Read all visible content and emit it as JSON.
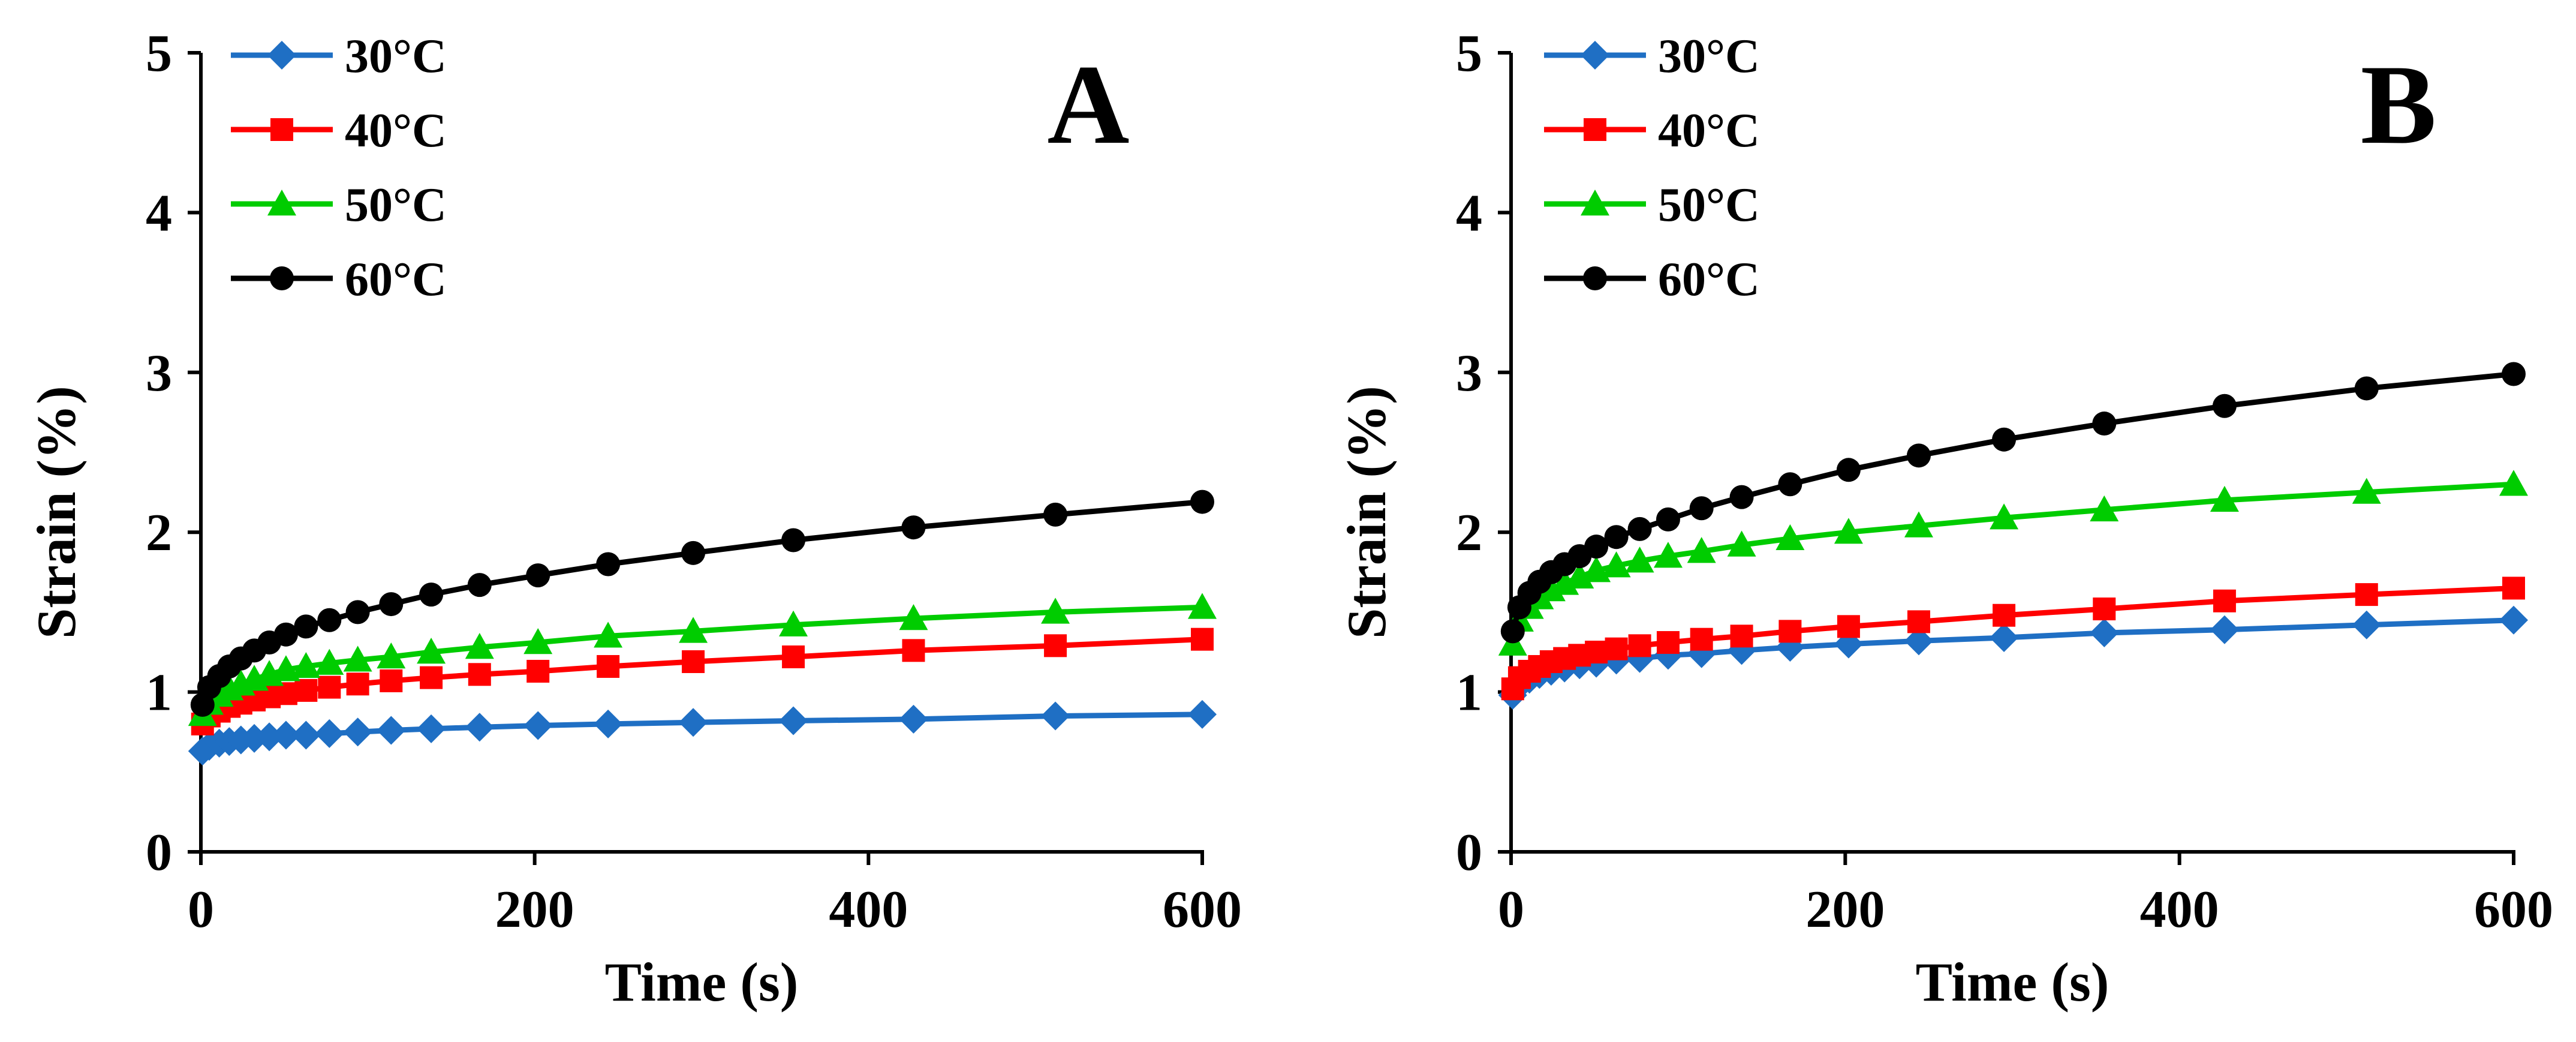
{
  "chart_data": [
    {
      "type": "line",
      "panel_label": "A",
      "xlabel": "Time (s)",
      "ylabel": "Strain (%)",
      "xlim": [
        0,
        600
      ],
      "ylim": [
        0,
        5
      ],
      "x_ticks": [
        "0",
        "200",
        "400",
        "600"
      ],
      "y_ticks": [
        "0",
        "1",
        "2",
        "3",
        "4",
        "5"
      ],
      "grid": false,
      "legend_position": "top-left",
      "x": [
        1,
        5,
        11,
        17,
        24,
        32,
        41,
        51,
        63,
        77,
        94,
        114,
        138,
        167,
        202,
        244,
        295,
        355,
        427,
        512,
        600
      ],
      "series": [
        {
          "name": "30°C",
          "color": "#1f6fc4",
          "marker": "diamond",
          "values": [
            0.63,
            0.66,
            0.68,
            0.69,
            0.7,
            0.71,
            0.72,
            0.73,
            0.73,
            0.74,
            0.75,
            0.76,
            0.77,
            0.78,
            0.79,
            0.8,
            0.81,
            0.82,
            0.83,
            0.85,
            0.86
          ]
        },
        {
          "name": "40°C",
          "color": "#ff0000",
          "marker": "square",
          "values": [
            0.8,
            0.85,
            0.88,
            0.91,
            0.93,
            0.95,
            0.97,
            0.99,
            1.01,
            1.03,
            1.05,
            1.07,
            1.09,
            1.11,
            1.13,
            1.16,
            1.19,
            1.22,
            1.26,
            1.29,
            1.33
          ]
        },
        {
          "name": "50°C",
          "color": "#00cc00",
          "marker": "triangle",
          "values": [
            0.86,
            0.93,
            0.98,
            1.02,
            1.05,
            1.08,
            1.11,
            1.14,
            1.16,
            1.18,
            1.2,
            1.22,
            1.25,
            1.28,
            1.31,
            1.35,
            1.38,
            1.42,
            1.46,
            1.5,
            1.53
          ]
        },
        {
          "name": "60°C",
          "color": "#000000",
          "marker": "circle",
          "values": [
            0.92,
            1.03,
            1.1,
            1.16,
            1.21,
            1.26,
            1.31,
            1.36,
            1.41,
            1.45,
            1.5,
            1.55,
            1.61,
            1.67,
            1.73,
            1.8,
            1.87,
            1.95,
            2.03,
            2.11,
            2.19
          ]
        }
      ]
    },
    {
      "type": "line",
      "panel_label": "B",
      "xlabel": "Time (s)",
      "ylabel": "Strain (%)",
      "xlim": [
        0,
        600
      ],
      "ylim": [
        0,
        5
      ],
      "x_ticks": [
        "0",
        "200",
        "400",
        "600"
      ],
      "y_ticks": [
        "0",
        "1",
        "2",
        "3",
        "4",
        "5"
      ],
      "grid": false,
      "legend_position": "top-left",
      "x": [
        1,
        5,
        11,
        17,
        24,
        32,
        41,
        51,
        63,
        77,
        94,
        114,
        138,
        167,
        202,
        244,
        295,
        355,
        427,
        512,
        600
      ],
      "series": [
        {
          "name": "30°C",
          "color": "#1f6fc4",
          "marker": "diamond",
          "values": [
            0.98,
            1.04,
            1.08,
            1.11,
            1.13,
            1.15,
            1.17,
            1.18,
            1.2,
            1.21,
            1.23,
            1.24,
            1.26,
            1.28,
            1.3,
            1.32,
            1.34,
            1.37,
            1.39,
            1.42,
            1.45
          ]
        },
        {
          "name": "40°C",
          "color": "#ff0000",
          "marker": "square",
          "values": [
            1.02,
            1.09,
            1.13,
            1.16,
            1.19,
            1.21,
            1.23,
            1.25,
            1.27,
            1.29,
            1.31,
            1.33,
            1.35,
            1.38,
            1.41,
            1.44,
            1.48,
            1.52,
            1.57,
            1.61,
            1.65
          ]
        },
        {
          "name": "50°C",
          "color": "#00cc00",
          "marker": "triangle",
          "values": [
            1.3,
            1.45,
            1.53,
            1.59,
            1.64,
            1.68,
            1.72,
            1.76,
            1.79,
            1.82,
            1.85,
            1.88,
            1.92,
            1.96,
            2.0,
            2.04,
            2.09,
            2.14,
            2.2,
            2.25,
            2.3
          ]
        },
        {
          "name": "60°C",
          "color": "#000000",
          "marker": "circle",
          "values": [
            1.38,
            1.53,
            1.62,
            1.69,
            1.75,
            1.8,
            1.85,
            1.91,
            1.97,
            2.02,
            2.08,
            2.15,
            2.22,
            2.3,
            2.39,
            2.48,
            2.58,
            2.68,
            2.79,
            2.9,
            2.99
          ]
        }
      ]
    }
  ]
}
